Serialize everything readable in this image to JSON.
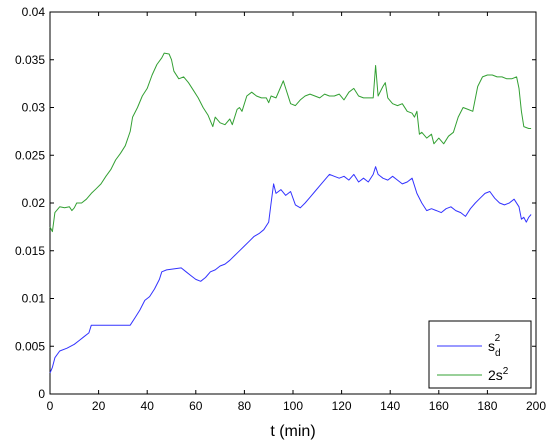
{
  "chart_data": {
    "type": "line",
    "xlabel": "t (min)",
    "ylabel": "",
    "xlim": [
      0,
      200
    ],
    "ylim": [
      0,
      0.04
    ],
    "xticks": [
      "0",
      "20",
      "40",
      "60",
      "80",
      "100",
      "120",
      "140",
      "160",
      "180",
      "200"
    ],
    "yticks": [
      "0",
      "0.005",
      "0.01",
      "0.015",
      "0.02",
      "0.025",
      "0.03",
      "0.035",
      "0.04"
    ],
    "grid": false,
    "legend_position": "bottom-right",
    "series": [
      {
        "legend_main": "s",
        "legend_sub": "d",
        "legend_sup": "2",
        "color": "#3333ff",
        "points": [
          [
            0,
            0.0022
          ],
          [
            1,
            0.0028
          ],
          [
            2,
            0.0038
          ],
          [
            4,
            0.0045
          ],
          [
            7,
            0.0048
          ],
          [
            10,
            0.0052
          ],
          [
            12,
            0.0056
          ],
          [
            14,
            0.006
          ],
          [
            16,
            0.0064
          ],
          [
            17,
            0.0072
          ],
          [
            20,
            0.0072
          ],
          [
            25,
            0.0072
          ],
          [
            30,
            0.0072
          ],
          [
            33,
            0.0072
          ],
          [
            35,
            0.008
          ],
          [
            37,
            0.0088
          ],
          [
            39,
            0.0098
          ],
          [
            41,
            0.0102
          ],
          [
            43,
            0.011
          ],
          [
            45,
            0.012
          ],
          [
            46,
            0.0128
          ],
          [
            48,
            0.013
          ],
          [
            51,
            0.0131
          ],
          [
            54,
            0.0132
          ],
          [
            56,
            0.0128
          ],
          [
            58,
            0.0124
          ],
          [
            60,
            0.012
          ],
          [
            62,
            0.0118
          ],
          [
            64,
            0.0122
          ],
          [
            66,
            0.0128
          ],
          [
            68,
            0.013
          ],
          [
            70,
            0.0134
          ],
          [
            72,
            0.0136
          ],
          [
            74,
            0.014
          ],
          [
            76,
            0.0145
          ],
          [
            78,
            0.015
          ],
          [
            80,
            0.0155
          ],
          [
            82,
            0.016
          ],
          [
            84,
            0.0165
          ],
          [
            86,
            0.0168
          ],
          [
            88,
            0.0172
          ],
          [
            90,
            0.018
          ],
          [
            91,
            0.02
          ],
          [
            92,
            0.022
          ],
          [
            93,
            0.021
          ],
          [
            95,
            0.0214
          ],
          [
            97,
            0.0208
          ],
          [
            99,
            0.0212
          ],
          [
            101,
            0.0198
          ],
          [
            103,
            0.0195
          ],
          [
            105,
            0.02
          ],
          [
            107,
            0.0206
          ],
          [
            109,
            0.0212
          ],
          [
            111,
            0.0218
          ],
          [
            113,
            0.0224
          ],
          [
            115,
            0.023
          ],
          [
            117,
            0.0228
          ],
          [
            119,
            0.0226
          ],
          [
            121,
            0.0228
          ],
          [
            123,
            0.0224
          ],
          [
            125,
            0.023
          ],
          [
            127,
            0.0222
          ],
          [
            129,
            0.0226
          ],
          [
            131,
            0.0222
          ],
          [
            133,
            0.023
          ],
          [
            134,
            0.0238
          ],
          [
            135,
            0.023
          ],
          [
            137,
            0.0226
          ],
          [
            139,
            0.0224
          ],
          [
            141,
            0.0228
          ],
          [
            143,
            0.0224
          ],
          [
            145,
            0.022
          ],
          [
            147,
            0.0222
          ],
          [
            149,
            0.0226
          ],
          [
            151,
            0.021
          ],
          [
            153,
            0.02
          ],
          [
            155,
            0.0192
          ],
          [
            157,
            0.0194
          ],
          [
            159,
            0.0192
          ],
          [
            161,
            0.019
          ],
          [
            163,
            0.0194
          ],
          [
            165,
            0.0196
          ],
          [
            167,
            0.0192
          ],
          [
            169,
            0.019
          ],
          [
            171,
            0.0186
          ],
          [
            173,
            0.0194
          ],
          [
            175,
            0.02
          ],
          [
            177,
            0.0205
          ],
          [
            179,
            0.021
          ],
          [
            181,
            0.0212
          ],
          [
            183,
            0.0205
          ],
          [
            185,
            0.02
          ],
          [
            187,
            0.0198
          ],
          [
            189,
            0.02
          ],
          [
            191,
            0.0204
          ],
          [
            193,
            0.0196
          ],
          [
            194,
            0.0183
          ],
          [
            195,
            0.0185
          ],
          [
            196,
            0.018
          ],
          [
            197,
            0.0185
          ],
          [
            198,
            0.0188
          ]
        ]
      },
      {
        "legend_main": "2s",
        "legend_sub": "",
        "legend_sup": "2",
        "color": "#33a033",
        "points": [
          [
            0,
            0.0175
          ],
          [
            1,
            0.017
          ],
          [
            2,
            0.019
          ],
          [
            4,
            0.0196
          ],
          [
            6,
            0.0195
          ],
          [
            8,
            0.0196
          ],
          [
            9,
            0.0192
          ],
          [
            10,
            0.0195
          ],
          [
            11,
            0.02
          ],
          [
            13,
            0.02
          ],
          [
            15,
            0.0204
          ],
          [
            17,
            0.021
          ],
          [
            19,
            0.0215
          ],
          [
            21,
            0.022
          ],
          [
            23,
            0.0228
          ],
          [
            25,
            0.0235
          ],
          [
            27,
            0.0245
          ],
          [
            29,
            0.0252
          ],
          [
            31,
            0.026
          ],
          [
            33,
            0.0275
          ],
          [
            34,
            0.029
          ],
          [
            36,
            0.03
          ],
          [
            38,
            0.0312
          ],
          [
            40,
            0.032
          ],
          [
            42,
            0.0334
          ],
          [
            44,
            0.0345
          ],
          [
            46,
            0.0352
          ],
          [
            47,
            0.0357
          ],
          [
            49,
            0.0356
          ],
          [
            50,
            0.035
          ],
          [
            51,
            0.0338
          ],
          [
            53,
            0.033
          ],
          [
            55,
            0.0332
          ],
          [
            57,
            0.0326
          ],
          [
            59,
            0.0318
          ],
          [
            61,
            0.031
          ],
          [
            63,
            0.03
          ],
          [
            65,
            0.0292
          ],
          [
            66,
            0.0286
          ],
          [
            67,
            0.028
          ],
          [
            68,
            0.029
          ],
          [
            70,
            0.0284
          ],
          [
            72,
            0.0282
          ],
          [
            74,
            0.0288
          ],
          [
            75,
            0.0282
          ],
          [
            77,
            0.0298
          ],
          [
            78,
            0.03
          ],
          [
            79,
            0.0296
          ],
          [
            81,
            0.0312
          ],
          [
            83,
            0.0316
          ],
          [
            85,
            0.0312
          ],
          [
            87,
            0.031
          ],
          [
            89,
            0.031
          ],
          [
            90,
            0.0305
          ],
          [
            91,
            0.0312
          ],
          [
            93,
            0.031
          ],
          [
            95,
            0.0322
          ],
          [
            96,
            0.0328
          ],
          [
            97,
            0.032
          ],
          [
            99,
            0.0304
          ],
          [
            101,
            0.0302
          ],
          [
            103,
            0.0308
          ],
          [
            105,
            0.0312
          ],
          [
            107,
            0.0314
          ],
          [
            109,
            0.0312
          ],
          [
            111,
            0.031
          ],
          [
            113,
            0.0314
          ],
          [
            115,
            0.0312
          ],
          [
            117,
            0.0312
          ],
          [
            119,
            0.0314
          ],
          [
            121,
            0.0308
          ],
          [
            123,
            0.0316
          ],
          [
            125,
            0.032
          ],
          [
            127,
            0.0312
          ],
          [
            129,
            0.031
          ],
          [
            131,
            0.031
          ],
          [
            133,
            0.031
          ],
          [
            134,
            0.0344
          ],
          [
            135,
            0.0312
          ],
          [
            137,
            0.0322
          ],
          [
            138,
            0.0326
          ],
          [
            139,
            0.031
          ],
          [
            141,
            0.0304
          ],
          [
            143,
            0.0302
          ],
          [
            145,
            0.0304
          ],
          [
            147,
            0.0296
          ],
          [
            149,
            0.0294
          ],
          [
            150,
            0.029
          ],
          [
            151,
            0.0296
          ],
          [
            152,
            0.0272
          ],
          [
            153,
            0.0274
          ],
          [
            155,
            0.0268
          ],
          [
            157,
            0.0272
          ],
          [
            158,
            0.0262
          ],
          [
            160,
            0.0268
          ],
          [
            162,
            0.0262
          ],
          [
            164,
            0.027
          ],
          [
            166,
            0.0274
          ],
          [
            168,
            0.029
          ],
          [
            170,
            0.03
          ],
          [
            172,
            0.0298
          ],
          [
            174,
            0.0296
          ],
          [
            176,
            0.0322
          ],
          [
            178,
            0.0332
          ],
          [
            180,
            0.0334
          ],
          [
            182,
            0.0334
          ],
          [
            184,
            0.0332
          ],
          [
            186,
            0.0332
          ],
          [
            188,
            0.033
          ],
          [
            190,
            0.033
          ],
          [
            192,
            0.0332
          ],
          [
            193,
            0.032
          ],
          [
            194,
            0.0296
          ],
          [
            195,
            0.028
          ],
          [
            197,
            0.0278
          ],
          [
            198,
            0.0278
          ]
        ]
      }
    ]
  }
}
